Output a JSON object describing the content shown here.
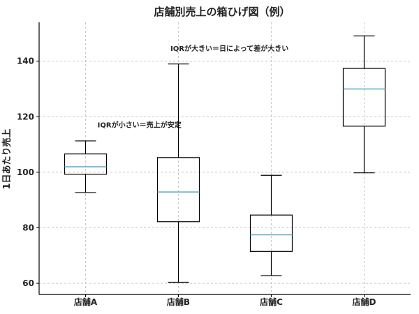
{
  "chart_data": {
    "type": "boxplot",
    "title": "店舗別売上の箱ひげ図（例）",
    "xlabel": "",
    "ylabel": "1日あたり売上",
    "ylim": [
      56,
      154
    ],
    "yticks": [
      60,
      80,
      100,
      120,
      140
    ],
    "grid": true,
    "categories": [
      "店舗A",
      "店舗B",
      "店舗C",
      "店舗D"
    ],
    "boxes": [
      {
        "category": "店舗A",
        "whisker_low": 92.7,
        "q1": 99.3,
        "median": 102.0,
        "q3": 106.6,
        "whisker_high": 111.3
      },
      {
        "category": "店舗B",
        "whisker_low": 60.4,
        "q1": 82.2,
        "median": 92.9,
        "q3": 105.3,
        "whisker_high": 139.0
      },
      {
        "category": "店舗C",
        "whisker_low": 62.8,
        "q1": 71.5,
        "median": 77.5,
        "q3": 84.6,
        "whisker_high": 98.9
      },
      {
        "category": "店舗D",
        "whisker_low": 99.8,
        "q1": 116.6,
        "median": 130.0,
        "q3": 137.4,
        "whisker_high": 149.1
      }
    ],
    "annotations": [
      {
        "text": "IQRが大きい＝日によって差が大きい",
        "category_pos": 1.55,
        "y": 144.7
      },
      {
        "text": "IQRが小さい＝売上が安定",
        "category_pos": 0.58,
        "y": 117.2
      }
    ],
    "colors": {
      "box": "#000000",
      "median": "#5aa9c9",
      "grid": "#c8c8c8",
      "axis": "#000000"
    }
  }
}
